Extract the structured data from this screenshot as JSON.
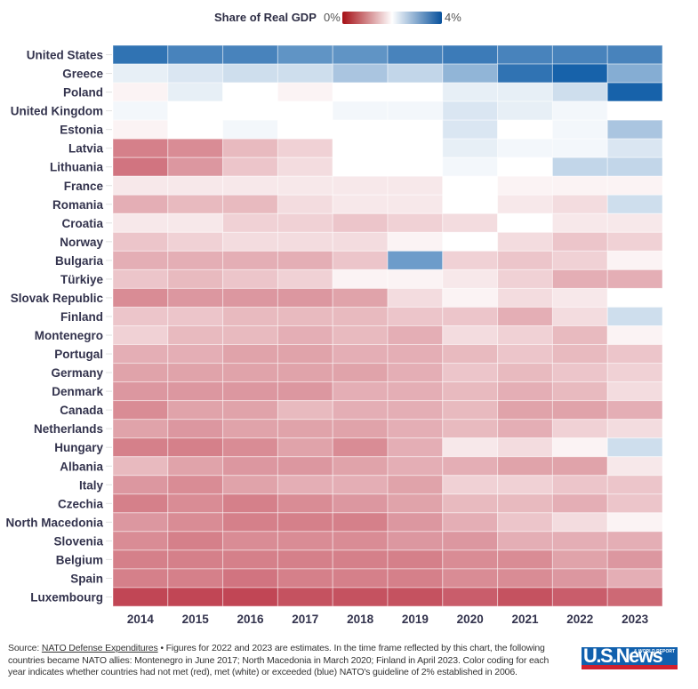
{
  "legend": {
    "title": "Share of Real GDP",
    "min_label": "0%",
    "max_label": "4%",
    "colors": {
      "low": "#a50f15",
      "mid": "#ffffff",
      "high": "#08519c"
    }
  },
  "footer": {
    "source_prefix": "Source: ",
    "source_link": "NATO Defense Expenditures",
    "note": " • Figures for 2022 and 2023 are estimates. In the time frame reflected by this chart, the following countries became NATO allies: Montenegro in June 2017; North Macedonia in March 2020; Finland in April 2023. Color coding for each year indicates whether countries had not met (red), met (white) or exceeded (blue) NATO's guideline of 2% established in 2006."
  },
  "logo": {
    "text": "U.S.News",
    "subtext": "& WORLD REPORT"
  },
  "chart_data": {
    "type": "heatmap",
    "title": "Share of Real GDP",
    "xlabel": "",
    "ylabel": "",
    "value_unit": "% of real GDP",
    "color_range": [
      0,
      4
    ],
    "color_midpoint": 2,
    "categories": [
      "2014",
      "2015",
      "2016",
      "2017",
      "2018",
      "2019",
      "2020",
      "2021",
      "2022",
      "2023"
    ],
    "rows": [
      {
        "name": "United States",
        "values": [
          3.7,
          3.5,
          3.5,
          3.3,
          3.3,
          3.5,
          3.6,
          3.5,
          3.5,
          3.5
        ]
      },
      {
        "name": "Greece",
        "values": [
          2.2,
          2.3,
          2.4,
          2.4,
          2.7,
          2.5,
          2.9,
          3.7,
          3.9,
          3.0
        ]
      },
      {
        "name": "Poland",
        "values": [
          1.9,
          2.2,
          2.0,
          1.9,
          2.0,
          2.0,
          2.2,
          2.2,
          2.4,
          3.9
        ]
      },
      {
        "name": "United Kingdom",
        "values": [
          2.1,
          2.0,
          2.0,
          2.0,
          2.1,
          2.1,
          2.3,
          2.2,
          2.1,
          2.0
        ]
      },
      {
        "name": "Estonia",
        "values": [
          1.9,
          2.0,
          2.1,
          2.0,
          2.0,
          2.0,
          2.3,
          2.0,
          2.1,
          2.7
        ]
      },
      {
        "name": "Latvia",
        "values": [
          0.9,
          1.0,
          1.4,
          1.6,
          2.0,
          2.0,
          2.2,
          2.1,
          2.1,
          2.3
        ]
      },
      {
        "name": "Lithuania",
        "values": [
          0.8,
          1.1,
          1.5,
          1.7,
          2.0,
          2.0,
          2.1,
          2.0,
          2.5,
          2.5
        ]
      },
      {
        "name": "France",
        "values": [
          1.8,
          1.8,
          1.8,
          1.8,
          1.8,
          1.8,
          2.0,
          1.9,
          1.9,
          1.9
        ]
      },
      {
        "name": "Romania",
        "values": [
          1.3,
          1.4,
          1.4,
          1.7,
          1.8,
          1.8,
          2.0,
          1.8,
          1.7,
          2.4
        ]
      },
      {
        "name": "Croatia",
        "values": [
          1.8,
          1.8,
          1.6,
          1.6,
          1.5,
          1.6,
          1.7,
          2.0,
          1.8,
          1.8
        ]
      },
      {
        "name": "Norway",
        "values": [
          1.5,
          1.6,
          1.7,
          1.7,
          1.7,
          1.9,
          2.0,
          1.7,
          1.5,
          1.6
        ]
      },
      {
        "name": "Bulgaria",
        "values": [
          1.3,
          1.3,
          1.3,
          1.3,
          1.5,
          3.2,
          1.6,
          1.5,
          1.6,
          1.9
        ]
      },
      {
        "name": "Türkiye",
        "values": [
          1.5,
          1.4,
          1.5,
          1.6,
          1.9,
          1.9,
          1.8,
          1.6,
          1.3,
          1.3
        ]
      },
      {
        "name": "Slovak Republic",
        "values": [
          1.0,
          1.1,
          1.1,
          1.1,
          1.2,
          1.7,
          1.9,
          1.7,
          1.8,
          2.0
        ]
      },
      {
        "name": "Finland",
        "values": [
          1.5,
          1.5,
          1.4,
          1.4,
          1.4,
          1.5,
          1.5,
          1.3,
          1.7,
          2.4
        ]
      },
      {
        "name": "Montenegro",
        "values": [
          1.6,
          1.4,
          1.4,
          1.3,
          1.4,
          1.3,
          1.7,
          1.6,
          1.4,
          1.9
        ]
      },
      {
        "name": "Portugal",
        "values": [
          1.3,
          1.3,
          1.2,
          1.2,
          1.3,
          1.3,
          1.4,
          1.5,
          1.4,
          1.5
        ]
      },
      {
        "name": "Germany",
        "values": [
          1.2,
          1.2,
          1.2,
          1.2,
          1.2,
          1.3,
          1.5,
          1.4,
          1.5,
          1.6
        ]
      },
      {
        "name": "Denmark",
        "values": [
          1.1,
          1.1,
          1.1,
          1.1,
          1.3,
          1.3,
          1.4,
          1.3,
          1.4,
          1.7
        ]
      },
      {
        "name": "Canada",
        "values": [
          1.0,
          1.2,
          1.2,
          1.4,
          1.3,
          1.3,
          1.4,
          1.2,
          1.2,
          1.3
        ]
      },
      {
        "name": "Netherlands",
        "values": [
          1.2,
          1.1,
          1.2,
          1.2,
          1.2,
          1.3,
          1.4,
          1.3,
          1.6,
          1.7
        ]
      },
      {
        "name": "Hungary",
        "values": [
          0.9,
          0.9,
          1.0,
          1.2,
          1.0,
          1.3,
          1.8,
          1.7,
          1.9,
          2.4
        ]
      },
      {
        "name": "Albania",
        "values": [
          1.4,
          1.2,
          1.1,
          1.1,
          1.2,
          1.3,
          1.3,
          1.2,
          1.2,
          1.8
        ]
      },
      {
        "name": "Italy",
        "values": [
          1.1,
          1.0,
          1.2,
          1.3,
          1.3,
          1.2,
          1.6,
          1.6,
          1.5,
          1.5
        ]
      },
      {
        "name": "Czechia",
        "values": [
          0.9,
          1.0,
          0.9,
          1.0,
          1.1,
          1.2,
          1.4,
          1.4,
          1.3,
          1.5
        ]
      },
      {
        "name": "North Macedonia",
        "values": [
          1.1,
          1.0,
          0.9,
          0.9,
          0.9,
          1.1,
          1.3,
          1.5,
          1.7,
          1.9
        ]
      },
      {
        "name": "Slovenia",
        "values": [
          1.0,
          0.9,
          1.0,
          1.0,
          1.0,
          1.1,
          1.1,
          1.3,
          1.3,
          1.3
        ]
      },
      {
        "name": "Belgium",
        "values": [
          0.9,
          0.9,
          0.9,
          0.9,
          0.9,
          0.9,
          1.0,
          1.0,
          1.2,
          1.1
        ]
      },
      {
        "name": "Spain",
        "values": [
          0.9,
          0.9,
          0.8,
          0.9,
          0.9,
          0.9,
          1.0,
          1.0,
          1.1,
          1.3
        ]
      },
      {
        "name": "Luxembourg",
        "values": [
          0.4,
          0.4,
          0.4,
          0.5,
          0.5,
          0.5,
          0.6,
          0.5,
          0.6,
          0.7
        ]
      }
    ]
  }
}
